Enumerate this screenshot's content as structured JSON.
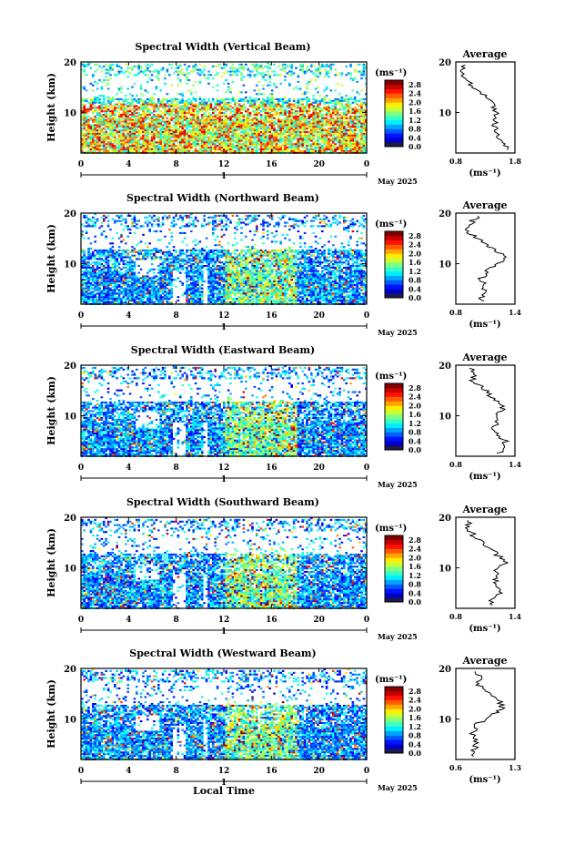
{
  "chart_data": [
    {
      "type": "heatmap",
      "title": "Spectral Width (Vertical Beam)",
      "ylabel": "Height (km)",
      "yticks": [
        "20",
        "10"
      ],
      "xticks": [
        "0",
        "4",
        "8",
        "12",
        "16",
        "20",
        "0"
      ],
      "date_tick": "1",
      "date_label": "May 2025",
      "ylim": [
        2,
        20
      ],
      "xlim": [
        0,
        24
      ],
      "colorbar": {
        "unit": "(ms⁻¹)",
        "ticks": [
          "2.8",
          "2.4",
          "2.0",
          "1.6",
          "1.2",
          "0.8",
          "0.4",
          "0.0"
        ],
        "range": [
          0,
          3.0
        ]
      },
      "profile": {
        "title": "Average",
        "xlabel": "(ms⁻¹)",
        "xticks": [
          "0.8",
          "1.8"
        ],
        "yticks": [
          "20",
          "10"
        ],
        "xlim": [
          0.8,
          1.8
        ],
        "heights": [
          3,
          5,
          7,
          9,
          11,
          13,
          15,
          16,
          17,
          18,
          19,
          20
        ],
        "values": [
          1.7,
          1.55,
          1.45,
          1.5,
          1.45,
          1.35,
          1.1,
          1.0,
          0.95,
          0.9,
          0.95,
          0.9
        ]
      }
    },
    {
      "type": "heatmap",
      "title": "Spectral Width (Northward Beam)",
      "ylabel": "Height (km)",
      "yticks": [
        "20",
        "10"
      ],
      "xticks": [
        "0",
        "4",
        "8",
        "12",
        "16",
        "20",
        "0"
      ],
      "date_tick": "1",
      "date_label": "May 2025",
      "ylim": [
        2,
        20
      ],
      "xlim": [
        0,
        24
      ],
      "colorbar": {
        "unit": "(ms⁻¹)",
        "ticks": [
          "2.8",
          "2.4",
          "2.0",
          "1.6",
          "1.2",
          "0.8",
          "0.4",
          "0.0"
        ],
        "range": [
          0,
          3.0
        ]
      },
      "profile": {
        "title": "Average",
        "xlabel": "(ms⁻¹)",
        "xticks": [
          "0.8",
          "1.4"
        ],
        "yticks": [
          "20",
          "10"
        ],
        "xlim": [
          0.8,
          1.4
        ],
        "heights": [
          3,
          5,
          7,
          9,
          11,
          12,
          14,
          16,
          17,
          18,
          19,
          20
        ],
        "values": [
          1.05,
          1.1,
          1.05,
          1.15,
          1.3,
          1.25,
          1.1,
          0.95,
          0.9,
          0.95,
          1.0,
          1.05
        ]
      }
    },
    {
      "type": "heatmap",
      "title": "Spectral Width (Eastward Beam)",
      "ylabel": "Height (km)",
      "yticks": [
        "20",
        "10"
      ],
      "xticks": [
        "0",
        "4",
        "8",
        "12",
        "16",
        "20",
        "0"
      ],
      "date_tick": "1",
      "date_label": "May 2025",
      "ylim": [
        2,
        20
      ],
      "xlim": [
        0,
        24
      ],
      "colorbar": {
        "unit": "(ms⁻¹)",
        "ticks": [
          "2.8",
          "2.4",
          "2.0",
          "1.6",
          "1.2",
          "0.8",
          "0.4",
          "0.0"
        ],
        "range": [
          0,
          3.0
        ]
      },
      "profile": {
        "title": "Average",
        "xlabel": "(ms⁻¹)",
        "xticks": [
          "0.8",
          "1.4"
        ],
        "yticks": [
          "20",
          "10"
        ],
        "xlim": [
          0.8,
          1.4
        ],
        "heights": [
          3,
          5,
          7,
          9,
          11,
          12,
          14,
          16,
          17,
          18,
          19,
          20
        ],
        "values": [
          1.25,
          1.3,
          1.2,
          1.2,
          1.25,
          1.3,
          1.15,
          1.05,
          0.95,
          1.0,
          0.95,
          1.0
        ]
      }
    },
    {
      "type": "heatmap",
      "title": "Spectral Width (Southward Beam)",
      "ylabel": "Height (km)",
      "yticks": [
        "20",
        "10"
      ],
      "xticks": [
        "0",
        "4",
        "8",
        "12",
        "16",
        "20",
        "0"
      ],
      "date_tick": "1",
      "date_label": "May 2025",
      "ylim": [
        2,
        20
      ],
      "xlim": [
        0,
        24
      ],
      "colorbar": {
        "unit": "(ms⁻¹)",
        "ticks": [
          "2.8",
          "2.4",
          "2.0",
          "1.6",
          "1.2",
          "0.8",
          "0.4",
          "0.0"
        ],
        "range": [
          0,
          3.0
        ]
      },
      "profile": {
        "title": "Average",
        "xlabel": "(ms⁻¹)",
        "xticks": [
          "0.8",
          "1.4"
        ],
        "yticks": [
          "20",
          "10"
        ],
        "xlim": [
          0.8,
          1.4
        ],
        "heights": [
          3,
          5,
          7,
          9,
          11,
          12,
          14,
          16,
          17,
          18,
          19,
          20
        ],
        "values": [
          1.15,
          1.25,
          1.2,
          1.2,
          1.3,
          1.25,
          1.15,
          1.0,
          0.95,
          0.9,
          0.95,
          0.95
        ]
      }
    },
    {
      "type": "heatmap",
      "title": "Spectral Width (Westward Beam)",
      "ylabel": "Height (km)",
      "yticks": [
        "20",
        "10"
      ],
      "xticks": [
        "0",
        "4",
        "8",
        "12",
        "16",
        "20",
        "0"
      ],
      "date_tick": "1",
      "date_label": "May 2025",
      "xlabel": "Local Time",
      "ylim": [
        2,
        20
      ],
      "xlim": [
        0,
        24
      ],
      "colorbar": {
        "unit": "(ms⁻¹)",
        "ticks": [
          "2.8",
          "2.4",
          "2.0",
          "1.6",
          "1.2",
          "0.8",
          "0.4",
          "0.0"
        ],
        "range": [
          0,
          3.0
        ]
      },
      "profile": {
        "title": "Average",
        "xlabel": "(ms⁻¹)",
        "xticks": [
          "0.6",
          "1.3"
        ],
        "yticks": [
          "20",
          "10"
        ],
        "xlim": [
          0.6,
          1.3
        ],
        "heights": [
          3,
          5,
          7,
          9,
          11,
          12,
          14,
          16,
          17,
          18,
          19,
          20
        ],
        "values": [
          0.8,
          0.85,
          0.8,
          0.85,
          1.05,
          1.15,
          1.1,
          0.95,
          0.85,
          0.9,
          0.85,
          0.85
        ]
      }
    }
  ]
}
